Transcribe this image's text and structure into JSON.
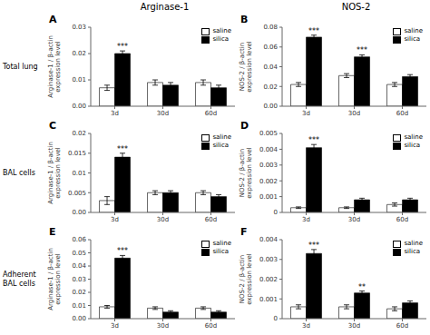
{
  "chart_data": [
    {
      "type": "bar",
      "panel": "A",
      "title": "Arginase-1",
      "row_label": "Total lung",
      "ylabel": "Arginase-1 / β-actin\nexpression level",
      "categories": [
        "3d",
        "30d",
        "60d"
      ],
      "series": [
        {
          "name": "saline",
          "color": "#ffffff",
          "values": [
            0.007,
            0.009,
            0.009
          ],
          "errors": [
            0.001,
            0.001,
            0.001
          ]
        },
        {
          "name": "silica",
          "color": "#000000",
          "values": [
            0.02,
            0.008,
            0.007
          ],
          "errors": [
            0.001,
            0.001,
            0.001
          ],
          "annotations": [
            "***",
            null,
            null
          ]
        }
      ],
      "ylim": [
        0,
        0.03
      ],
      "yticks": [
        {
          "value": 0,
          "label": "0.00"
        },
        0.01,
        0.02,
        0.03
      ],
      "legend": "upper right"
    },
    {
      "type": "bar",
      "panel": "B",
      "title": "NOS-2",
      "ylabel": "NOS-2 / β-actin\nexpression level",
      "categories": [
        "3d",
        "30d",
        "60d"
      ],
      "series": [
        {
          "name": "saline",
          "color": "#ffffff",
          "values": [
            0.022,
            0.031,
            0.022
          ],
          "errors": [
            0.002,
            0.002,
            0.002
          ]
        },
        {
          "name": "silica",
          "color": "#000000",
          "values": [
            0.07,
            0.05,
            0.03
          ],
          "errors": [
            0.002,
            0.002,
            0.002
          ],
          "annotations": [
            "***",
            "***",
            null
          ]
        }
      ],
      "ylim": [
        0,
        0.08
      ],
      "yticks": [
        {
          "value": 0,
          "label": "0.00"
        },
        0.02,
        0.04,
        0.06,
        0.08
      ],
      "legend": "upper right"
    },
    {
      "type": "bar",
      "panel": "C",
      "row_label": "BAL cells",
      "ylabel": "Arginase-1 / β-actin\nexpression level",
      "categories": [
        "3d",
        "30d",
        "60d"
      ],
      "series": [
        {
          "name": "saline",
          "color": "#ffffff",
          "values": [
            0.003,
            0.005,
            0.005
          ],
          "errors": [
            0.001,
            0.0005,
            0.0005
          ]
        },
        {
          "name": "silica",
          "color": "#000000",
          "values": [
            0.014,
            0.005,
            0.004
          ],
          "errors": [
            0.001,
            0.0005,
            0.0005
          ],
          "annotations": [
            "***",
            null,
            null
          ]
        }
      ],
      "ylim": [
        0,
        0.02
      ],
      "yticks": [
        {
          "value": 0,
          "label": "0.00"
        },
        0.005,
        0.01,
        0.015,
        0.02
      ],
      "legend": "upper right"
    },
    {
      "type": "bar",
      "panel": "D",
      "ylabel": "NOS-2 / β-actin\nexpression level",
      "categories": [
        "3d",
        "30d",
        "60d"
      ],
      "series": [
        {
          "name": "saline",
          "color": "#ffffff",
          "values": [
            0.0003,
            0.0003,
            0.0005
          ],
          "errors": [
            5e-05,
            5e-05,
            0.0001
          ]
        },
        {
          "name": "silica",
          "color": "#000000",
          "values": [
            0.0041,
            0.0008,
            0.0008
          ],
          "errors": [
            0.0002,
            0.0001,
            0.0001
          ],
          "annotations": [
            "***",
            null,
            null
          ]
        }
      ],
      "ylim": [
        0,
        0.005
      ],
      "yticks": [
        0,
        0.001,
        0.002,
        0.003,
        0.004,
        0.005
      ],
      "legend": "upper right"
    },
    {
      "type": "bar",
      "panel": "E",
      "row_label": "Adherent\nBAL cells",
      "ylabel": "Arginase-1 / β-actin\nexpression level",
      "categories": [
        "3d",
        "30d",
        "60d"
      ],
      "series": [
        {
          "name": "saline",
          "color": "#ffffff",
          "values": [
            0.009,
            0.008,
            0.008
          ],
          "errors": [
            0.001,
            0.001,
            0.001
          ]
        },
        {
          "name": "silica",
          "color": "#000000",
          "values": [
            0.046,
            0.005,
            0.005
          ],
          "errors": [
            0.002,
            0.001,
            0.001
          ],
          "annotations": [
            "***",
            null,
            null
          ]
        }
      ],
      "ylim": [
        0,
        0.06
      ],
      "yticks": [
        {
          "value": 0,
          "label": "0.00"
        },
        0.01,
        0.02,
        0.03,
        0.04,
        0.05,
        0.06
      ],
      "legend": "upper right"
    },
    {
      "type": "bar",
      "panel": "F",
      "ylabel": "NOS-2 / β-actin\nexpression level",
      "categories": [
        "3d",
        "30d",
        "60d"
      ],
      "series": [
        {
          "name": "saline",
          "color": "#ffffff",
          "values": [
            0.0006,
            0.0006,
            0.0005
          ],
          "errors": [
            0.0001,
            0.0001,
            0.0001
          ]
        },
        {
          "name": "silica",
          "color": "#000000",
          "values": [
            0.0033,
            0.0013,
            0.0008
          ],
          "errors": [
            0.0002,
            0.0001,
            0.0001
          ],
          "annotations": [
            "***",
            "**",
            null
          ]
        }
      ],
      "ylim": [
        0,
        0.004
      ],
      "yticks": [
        0,
        0.001,
        0.002,
        0.003,
        0.004
      ],
      "legend": "upper right"
    }
  ]
}
